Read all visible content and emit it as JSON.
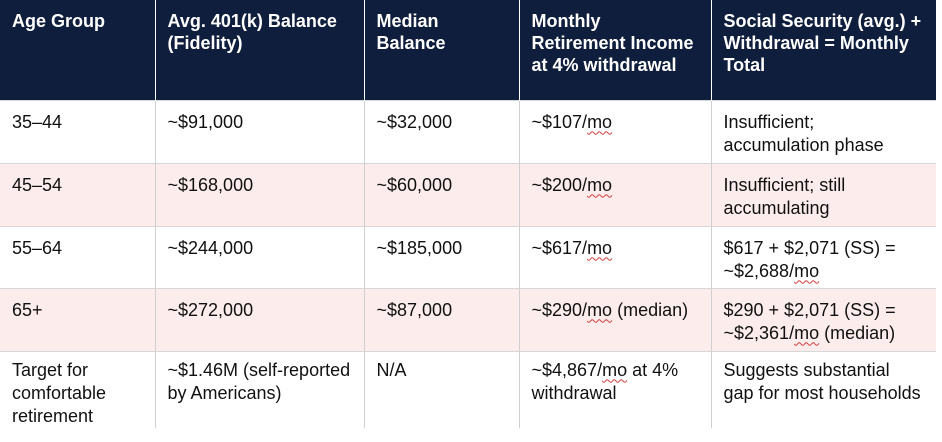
{
  "table": {
    "headers": [
      "Age Group",
      "Avg. 401(k) Balance (Fidelity)",
      "Median Balance",
      "Monthly Retirement Income at 4% withdrawal",
      "Social Security (avg.) + Withdrawal = Monthly Total"
    ],
    "rows": [
      {
        "age": "35–44",
        "avg": "~$91,000",
        "median": "~$32,000",
        "monthly_pre": "~$107/",
        "monthly_mo": "mo",
        "monthly_post": "",
        "ss_pre": "Insufficient; accumulation phase",
        "ss_mo": "",
        "ss_post": ""
      },
      {
        "age": "45–54",
        "avg": "~$168,000",
        "median": "~$60,000",
        "monthly_pre": "~$200/",
        "monthly_mo": "mo",
        "monthly_post": "",
        "ss_pre": "Insufficient; still accumulating",
        "ss_mo": "",
        "ss_post": ""
      },
      {
        "age": "55–64",
        "avg": "~$244,000",
        "median": "~$185,000",
        "monthly_pre": "~$617/",
        "monthly_mo": "mo",
        "monthly_post": "",
        "ss_pre": "$617 + $2,071 (SS) = ~$2,688/",
        "ss_mo": "mo",
        "ss_post": ""
      },
      {
        "age": "65+",
        "avg": "~$272,000",
        "median": "~$87,000",
        "monthly_pre": "~$290/",
        "monthly_mo": "mo",
        "monthly_post": " (median)",
        "ss_pre": "$290 + $2,071 (SS) = ~$2,361/",
        "ss_mo": "mo",
        "ss_post": " (median)"
      },
      {
        "age": "Target for comfortable retirement",
        "avg": "~$1.46M (self-reported by Americans)",
        "median": "N/A",
        "monthly_pre": "~$4,867/",
        "monthly_mo": "mo",
        "monthly_post": " at 4% withdrawal",
        "ss_pre": "Suggests substantial gap for most households",
        "ss_mo": "",
        "ss_post": ""
      }
    ]
  }
}
